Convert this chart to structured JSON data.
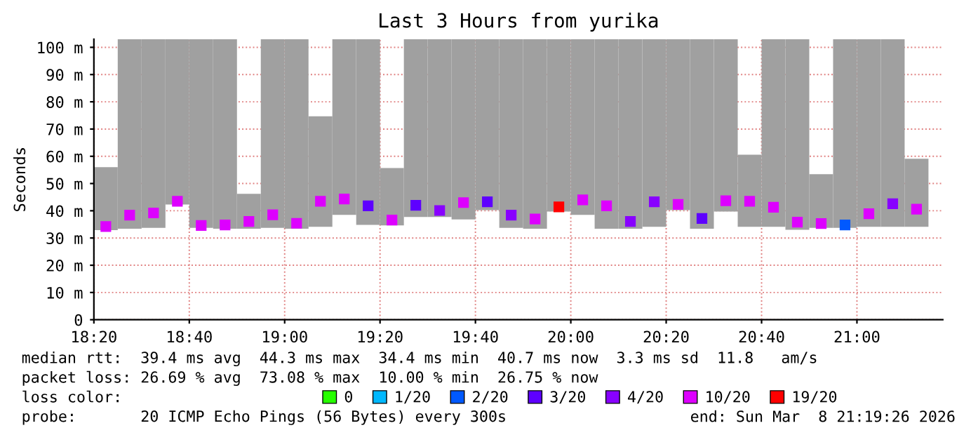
{
  "chart_data": {
    "type": "bar",
    "title": "Last 3 Hours from yurika",
    "ylabel": "Seconds",
    "marker": "square",
    "x": [
      18.375,
      18.4583,
      18.5417,
      18.625,
      18.7083,
      18.7917,
      18.875,
      18.9583,
      19.0417,
      19.125,
      19.2083,
      19.2917,
      19.375,
      19.4583,
      19.5417,
      19.625,
      19.7083,
      19.7917,
      19.875,
      19.9583,
      20.0417,
      20.125,
      20.2083,
      20.2917,
      20.375,
      20.4583,
      20.5417,
      20.625,
      20.7083,
      20.7917,
      20.875,
      20.9583,
      21.0417,
      21.125,
      21.2083
    ],
    "series": [
      {
        "color": "#a0a0a0",
        "base": [
          32.9,
          33.4,
          33.7,
          42.3,
          33.7,
          33.4,
          33.4,
          33.7,
          33.4,
          34.1,
          38.5,
          34.8,
          34.6,
          37.7,
          37.7,
          36.8,
          40.2,
          33.7,
          33.4,
          39.7,
          38.5,
          33.4,
          33.4,
          34.1,
          40.2,
          33.4,
          39.7,
          34.1,
          34.1,
          33,
          33.7,
          33.7,
          34.1,
          34.1,
          34.1
        ],
        "values": [
          23.1,
          69.6,
          69.3,
          60.7,
          69.3,
          69.6,
          12.8,
          69.3,
          69.6,
          40.6,
          64.5,
          68.2,
          21.1,
          65.3,
          65.3,
          66.2,
          62.8,
          69.3,
          69.6,
          63.3,
          64.5,
          69.6,
          69.6,
          68.9,
          62.8,
          69.6,
          63.3,
          26.5,
          68.9,
          70,
          19.7,
          69.3,
          68.9,
          68.9,
          25
        ]
      },
      {
        "type": "scatter",
        "name": "0",
        "color": "#26ff00",
        "values": [
          null,
          null,
          null,
          null,
          null,
          null,
          null,
          null,
          null,
          null,
          null,
          null,
          null,
          null,
          null,
          null,
          null,
          null,
          null,
          null,
          null,
          null,
          null,
          null,
          null,
          null,
          null,
          null,
          null,
          null,
          null,
          null,
          null,
          null,
          null
        ]
      },
      {
        "type": "scatter",
        "name": "1/20",
        "color": "#00b8ff",
        "values": [
          null,
          null,
          null,
          null,
          null,
          null,
          null,
          null,
          null,
          null,
          null,
          null,
          null,
          null,
          null,
          null,
          null,
          null,
          null,
          null,
          null,
          null,
          null,
          null,
          null,
          null,
          null,
          null,
          null,
          null,
          null,
          null,
          null,
          null,
          null
        ]
      },
      {
        "type": "scatter",
        "name": "2/20",
        "color": "#0059ff",
        "values": [
          null,
          null,
          null,
          null,
          null,
          null,
          null,
          null,
          null,
          null,
          null,
          null,
          null,
          null,
          null,
          null,
          null,
          null,
          null,
          null,
          null,
          null,
          null,
          null,
          null,
          null,
          null,
          null,
          null,
          null,
          null,
          34.8,
          null,
          null,
          null
        ]
      },
      {
        "type": "scatter",
        "name": "3/20",
        "color": "#5e00ff",
        "values": [
          null,
          null,
          null,
          null,
          null,
          null,
          null,
          null,
          null,
          null,
          null,
          41.8,
          null,
          42,
          null,
          null,
          43.3,
          null,
          null,
          null,
          null,
          null,
          null,
          null,
          null,
          37.2,
          null,
          null,
          null,
          null,
          null,
          null,
          null,
          null,
          null
        ]
      },
      {
        "type": "scatter",
        "name": "4/20",
        "color": "#8800ff",
        "values": [
          null,
          null,
          null,
          null,
          null,
          null,
          null,
          null,
          null,
          null,
          null,
          null,
          null,
          null,
          40.1,
          null,
          null,
          38.4,
          null,
          null,
          null,
          null,
          36.1,
          43.3,
          null,
          null,
          null,
          null,
          null,
          null,
          null,
          null,
          null,
          42.6,
          null
        ]
      },
      {
        "type": "scatter",
        "name": "10/20",
        "color": "#dd00ff",
        "values": [
          34.2,
          38.4,
          39.2,
          43.5,
          34.6,
          34.8,
          36.1,
          38.5,
          35.4,
          43.5,
          44.3,
          null,
          36.6,
          null,
          null,
          43,
          null,
          null,
          37,
          null,
          44,
          41.8,
          null,
          null,
          42.3,
          null,
          43.7,
          43.5,
          41.3,
          35.8,
          35.3,
          null,
          38.9,
          null,
          40.6
        ]
      },
      {
        "type": "scatter",
        "name": "19/20",
        "color": "#ff0000",
        "values": [
          null,
          null,
          null,
          null,
          null,
          null,
          null,
          null,
          null,
          null,
          null,
          null,
          null,
          null,
          null,
          null,
          null,
          null,
          null,
          41.4,
          null,
          null,
          null,
          null,
          null,
          null,
          null,
          null,
          null,
          null,
          null,
          null,
          null,
          null,
          null
        ]
      }
    ],
    "xlim": [
      18.3333,
      21.3
    ],
    "xticks": [
      {
        "value": 18.3333,
        "label": "18:20"
      },
      {
        "value": 18.6667,
        "label": "18:40"
      },
      {
        "value": 19,
        "label": "19:00"
      },
      {
        "value": 19.3333,
        "label": "19:20"
      },
      {
        "value": 19.6667,
        "label": "19:40"
      },
      {
        "value": 20,
        "label": "20:00"
      },
      {
        "value": 20.3333,
        "label": "20:20"
      },
      {
        "value": 20.6667,
        "label": "20:40"
      },
      {
        "value": 21,
        "label": "21:00"
      }
    ],
    "ylim": [
      0,
      103
    ],
    "yticks": [
      0,
      {
        "value": 10,
        "label": "10 m"
      },
      {
        "value": 20,
        "label": "20 m"
      },
      {
        "value": 30,
        "label": "30 m"
      },
      {
        "value": 40,
        "label": "40 m"
      },
      {
        "value": 50,
        "label": "50 m"
      },
      {
        "value": 60,
        "label": "60 m"
      },
      {
        "value": 70,
        "label": "70 m"
      },
      {
        "value": 80,
        "label": "80 m"
      },
      {
        "value": 90,
        "label": "90 m"
      },
      {
        "value": 100,
        "label": "100 m"
      }
    ],
    "grid": true,
    "legend": "bottom",
    "legend_title": "loss color:",
    "annotations": [
      "median rtt:  39.4 ms avg  44.3 ms max  34.4 ms min  40.7 ms now  3.3 ms sd  11.8   am/s",
      "packet loss: 26.69 % avg  73.08 % max  10.00 % min  26.75 % now",
      "probe:       20 ICMP Echo Pings (56 Bytes) every 300s",
      "end: Sun Mar  8 21:19:26 2026"
    ]
  }
}
